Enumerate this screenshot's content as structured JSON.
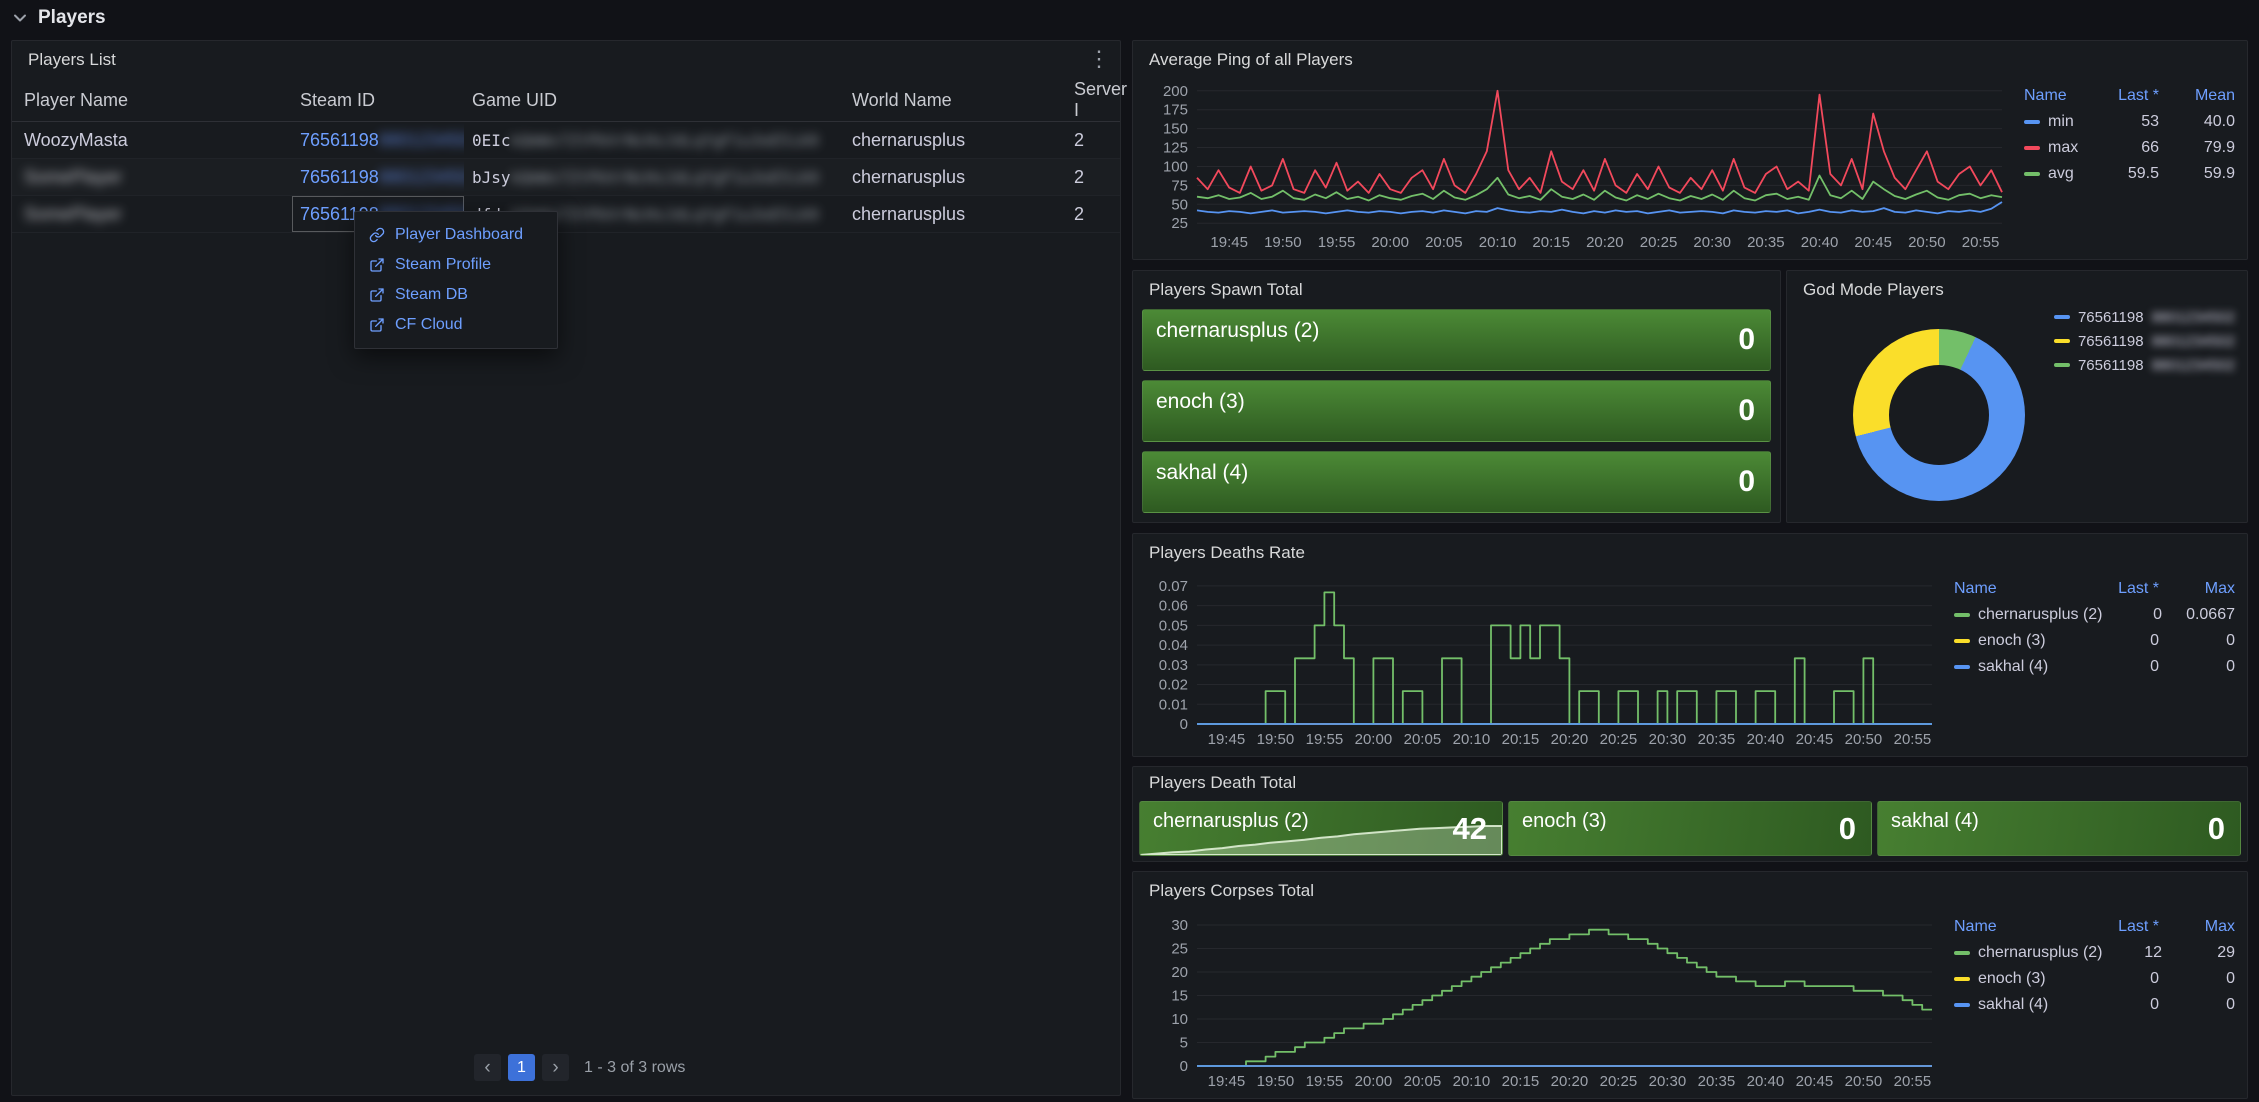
{
  "page": {
    "row_title": "Players",
    "icons": {
      "prev": "‹",
      "next": "›",
      "kebab": "⋮"
    }
  },
  "players_panel": {
    "title": "Players List",
    "columns": [
      "Player Name",
      "Steam ID",
      "Game UID",
      "World Name",
      "Server I"
    ],
    "rows": [
      {
        "name": "WoozyMasta",
        "name_redacted": false,
        "steam_prefix": "76561198",
        "steam_redacted": true,
        "uid_prefix": "0EIc",
        "uid_redacted": true,
        "world": "chernarusplus",
        "server": "2",
        "steam_cell_focused": false
      },
      {
        "name": "",
        "name_redacted": true,
        "steam_prefix": "76561198",
        "steam_redacted": true,
        "uid_prefix": "bJsy",
        "uid_redacted": true,
        "world": "chernarusplus",
        "server": "2",
        "steam_cell_focused": false
      },
      {
        "name": "",
        "name_redacted": true,
        "steam_prefix": "76561198",
        "steam_redacted": true,
        "uid_prefix": "dfdz",
        "uid_redacted": true,
        "world": "chernarusplus",
        "server": "2",
        "steam_cell_focused": true
      }
    ],
    "pagination": {
      "page": "1",
      "summary": "1 - 3 of 3 rows"
    }
  },
  "context_menu": {
    "items": [
      {
        "label": "Player Dashboard",
        "icon": "link"
      },
      {
        "label": "Steam Profile",
        "icon": "external"
      },
      {
        "label": "Steam DB",
        "icon": "external"
      },
      {
        "label": "CF Cloud",
        "icon": "external"
      }
    ]
  },
  "panels": {
    "ping": {
      "title": "Average Ping of all Players",
      "legend": {
        "headers": [
          "Name",
          "Last *",
          "Mean"
        ],
        "rows": [
          {
            "name": "min",
            "color": "#5794f2",
            "last": "53",
            "mean": "40.0"
          },
          {
            "name": "max",
            "color": "#f2495c",
            "last": "66",
            "mean": "79.9"
          },
          {
            "name": "avg",
            "color": "#73bf69",
            "last": "59.5",
            "mean": "59.9"
          }
        ]
      }
    },
    "spawn": {
      "title": "Players Spawn Total",
      "bars": [
        {
          "label": "chernarusplus (2)",
          "value": "0"
        },
        {
          "label": "enoch (3)",
          "value": "0"
        },
        {
          "label": "sakhal (4)",
          "value": "0"
        }
      ]
    },
    "godmode": {
      "title": "God Mode Players",
      "segments": [
        {
          "color": "#73bf69",
          "pct": 7
        },
        {
          "color": "#5794f2",
          "pct": 64
        },
        {
          "color": "#fade2a",
          "pct": 29
        }
      ],
      "legend": [
        {
          "color": "#5794f2",
          "label": "76561198"
        },
        {
          "color": "#fade2a",
          "label": "76561198"
        },
        {
          "color": "#73bf69",
          "label": "76561198"
        }
      ]
    },
    "deaths": {
      "title": "Players Deaths Rate",
      "legend": {
        "headers": [
          "Name",
          "Last *",
          "Max"
        ],
        "rows": [
          {
            "name": "chernarusplus (2)",
            "color": "#73bf69",
            "last": "0",
            "max": "0.0667"
          },
          {
            "name": "enoch (3)",
            "color": "#fade2a",
            "last": "0",
            "max": "0"
          },
          {
            "name": "sakhal (4)",
            "color": "#5794f2",
            "last": "0",
            "max": "0"
          }
        ]
      }
    },
    "death_total": {
      "title": "Players Death Total",
      "tiles": [
        {
          "label": "chernarusplus (2)",
          "value": "42",
          "spark": true
        },
        {
          "label": "enoch (3)",
          "value": "0",
          "spark": false
        },
        {
          "label": "sakhal (4)",
          "value": "0",
          "spark": false
        }
      ]
    },
    "corpses": {
      "title": "Players Corpses Total",
      "legend": {
        "headers": [
          "Name",
          "Last *",
          "Max"
        ],
        "rows": [
          {
            "name": "chernarusplus (2)",
            "color": "#73bf69",
            "last": "12",
            "max": "29"
          },
          {
            "name": "enoch (3)",
            "color": "#fade2a",
            "last": "0",
            "max": "0"
          },
          {
            "name": "sakhal (4)",
            "color": "#5794f2",
            "last": "0",
            "max": "0"
          }
        ]
      }
    }
  },
  "chart_data": [
    {
      "id": "chart-ping",
      "type": "line",
      "step": false,
      "title": "Average Ping of all Players",
      "points": 76,
      "x_total_min": 75,
      "x_tick_start_min": 3,
      "x_tick_step_min": 5,
      "x_ticks": [
        "19:45",
        "19:50",
        "19:55",
        "20:00",
        "20:05",
        "20:10",
        "20:15",
        "20:20",
        "20:25",
        "20:30",
        "20:35",
        "20:40",
        "20:45",
        "20:50",
        "20:55"
      ],
      "y_min": 20,
      "y_max": 205,
      "y_ticks": [
        25,
        50,
        75,
        100,
        125,
        150,
        175,
        200
      ],
      "series": [
        {
          "name": "min",
          "color": "#5794f2",
          "values": [
            42,
            40,
            39,
            41,
            40,
            38,
            40,
            42,
            39,
            40,
            41,
            40,
            38,
            40,
            42,
            40,
            39,
            41,
            40,
            38,
            40,
            41,
            39,
            42,
            40,
            38,
            41,
            40,
            45,
            42,
            40,
            39,
            41,
            40,
            43,
            40,
            38,
            41,
            39,
            42,
            40,
            41,
            38,
            40,
            42,
            39,
            40,
            41,
            40,
            38,
            42,
            40,
            39,
            41,
            40,
            42,
            38,
            40,
            43,
            40,
            39,
            42,
            40,
            41,
            45,
            40,
            39,
            42,
            40,
            38,
            41,
            40,
            42,
            40,
            44,
            53
          ]
        },
        {
          "name": "avg",
          "color": "#73bf69",
          "values": [
            60,
            58,
            62,
            57,
            59,
            65,
            57,
            60,
            68,
            58,
            56,
            63,
            58,
            66,
            57,
            60,
            55,
            62,
            58,
            56,
            61,
            64,
            57,
            68,
            59,
            56,
            62,
            70,
            85,
            63,
            58,
            61,
            56,
            70,
            60,
            57,
            63,
            56,
            68,
            59,
            55,
            62,
            57,
            64,
            58,
            55,
            61,
            57,
            63,
            56,
            68,
            58,
            55,
            62,
            64,
            57,
            60,
            56,
            88,
            62,
            58,
            68,
            57,
            80,
            70,
            61,
            57,
            63,
            68,
            59,
            56,
            62,
            64,
            58,
            62,
            59.5
          ]
        },
        {
          "name": "max",
          "color": "#f2495c",
          "values": [
            85,
            70,
            95,
            72,
            65,
            100,
            68,
            75,
            110,
            70,
            65,
            95,
            72,
            105,
            68,
            80,
            65,
            90,
            70,
            65,
            85,
            95,
            70,
            110,
            75,
            65,
            90,
            120,
            200,
            95,
            70,
            85,
            65,
            120,
            80,
            70,
            95,
            68,
            110,
            75,
            65,
            90,
            70,
            100,
            72,
            65,
            85,
            70,
            95,
            68,
            110,
            72,
            65,
            90,
            100,
            70,
            80,
            68,
            195,
            90,
            75,
            110,
            70,
            170,
            120,
            85,
            70,
            95,
            120,
            80,
            70,
            90,
            100,
            75,
            95,
            66
          ]
        }
      ]
    },
    {
      "id": "chart-deaths",
      "type": "line",
      "step": true,
      "title": "Players Deaths Rate",
      "points": 76,
      "x_total_min": 75,
      "x_tick_start_min": 3,
      "x_tick_step_min": 5,
      "x_ticks": [
        "19:45",
        "19:50",
        "19:55",
        "20:00",
        "20:05",
        "20:10",
        "20:15",
        "20:20",
        "20:25",
        "20:30",
        "20:35",
        "20:40",
        "20:45",
        "20:50",
        "20:55"
      ],
      "y_min": 0,
      "y_max": 0.073,
      "y_ticks": [
        0,
        0.01,
        0.02,
        0.03,
        0.04,
        0.05,
        0.06,
        0.07
      ],
      "series": [
        {
          "name": "enoch (3)",
          "color": "#fade2a",
          "values": [
            0
          ]
        },
        {
          "name": "chernarusplus (2)",
          "color": "#73bf69",
          "values": [
            0,
            0,
            0,
            0,
            0,
            0,
            0,
            0.0167,
            0.0167,
            0,
            0.0333,
            0.0333,
            0.05,
            0.0667,
            0.05,
            0.0333,
            0,
            0,
            0.0333,
            0.0333,
            0,
            0.0167,
            0.0167,
            0,
            0,
            0.0333,
            0.0333,
            0,
            0,
            0,
            0.05,
            0.05,
            0.0333,
            0.05,
            0.0333,
            0.05,
            0.05,
            0.0333,
            0,
            0.0167,
            0.0167,
            0,
            0,
            0.0167,
            0.0167,
            0,
            0,
            0.0167,
            0,
            0.0167,
            0.0167,
            0,
            0,
            0.0167,
            0.0167,
            0,
            0,
            0.0167,
            0.0167,
            0,
            0,
            0.0333,
            0,
            0,
            0,
            0.0167,
            0.0167,
            0,
            0.0333,
            0,
            0,
            0,
            0,
            0,
            0,
            0
          ]
        },
        {
          "name": "sakhal (4)",
          "color": "#5794f2",
          "values": [
            0
          ]
        }
      ]
    },
    {
      "id": "chart-corpses",
      "type": "line",
      "step": true,
      "title": "Players Corpses Total",
      "points": 76,
      "x_total_min": 75,
      "x_tick_start_min": 3,
      "x_tick_step_min": 5,
      "x_ticks": [
        "19:45",
        "19:50",
        "19:55",
        "20:00",
        "20:05",
        "20:10",
        "20:15",
        "20:20",
        "20:25",
        "20:30",
        "20:35",
        "20:40",
        "20:45",
        "20:50",
        "20:55"
      ],
      "y_min": 0,
      "y_max": 31.5,
      "y_ticks": [
        0,
        5,
        10,
        15,
        20,
        25,
        30
      ],
      "series": [
        {
          "name": "enoch (3)",
          "color": "#fade2a",
          "values": [
            0
          ]
        },
        {
          "name": "chernarusplus (2)",
          "color": "#73bf69",
          "values": [
            0,
            0,
            0,
            0,
            0,
            1,
            1,
            2,
            3,
            3,
            4,
            5,
            5,
            6,
            7,
            8,
            8,
            9,
            9,
            10,
            11,
            12,
            13,
            14,
            15,
            16,
            17,
            18,
            19,
            20,
            21,
            22,
            23,
            24,
            25,
            26,
            27,
            27,
            28,
            28,
            29,
            29,
            28,
            28,
            27,
            27,
            26,
            25,
            24,
            23,
            22,
            21,
            20,
            19,
            19,
            18,
            18,
            17,
            17,
            17,
            18,
            18,
            17,
            17,
            17,
            17,
            17,
            16,
            16,
            16,
            15,
            15,
            14,
            13,
            12,
            12
          ]
        },
        {
          "name": "sakhal (4)",
          "color": "#5794f2",
          "values": [
            0
          ]
        }
      ]
    },
    {
      "id": "spark-deaths",
      "type": "area_spark",
      "max": 42,
      "values": [
        0,
        2,
        4,
        5,
        8,
        10,
        13,
        15,
        18,
        20,
        22,
        25,
        27,
        30,
        32,
        34,
        36,
        38,
        39,
        40,
        41,
        42,
        42
      ],
      "fill": "rgba(222,240,212,0.32)",
      "stroke": "rgba(231,246,222,0.85)"
    }
  ]
}
